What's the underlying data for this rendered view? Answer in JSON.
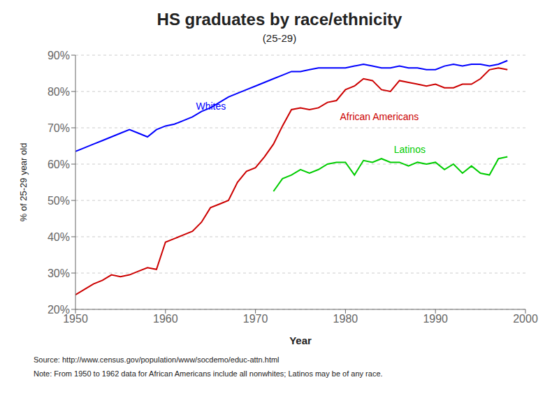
{
  "chart_data": {
    "type": "line",
    "title": "HS graduates by race/ethnicity",
    "subtitle": "(25-29)",
    "x_label": "Year",
    "y_label": "% of 25-29 year old",
    "source": "Source:  http://www.census.gov/population/www/socdemo/educ-attn.html",
    "note": "Note:  From 1950 to 1962 data for African Americans include all nonwhites;  Latinos may be of any race.",
    "xlim": [
      1950,
      2000
    ],
    "xticks": [
      1950,
      1960,
      1970,
      1980,
      1990,
      2000
    ],
    "ylim": [
      20,
      90
    ],
    "yticks": [
      {
        "value": 20,
        "label": "20%"
      },
      {
        "value": 30,
        "label": "30%"
      },
      {
        "value": 40,
        "label": "40%"
      },
      {
        "value": 50,
        "label": "50%"
      },
      {
        "value": 60,
        "label": "60%"
      },
      {
        "value": 70,
        "label": "70%"
      },
      {
        "value": 80,
        "label": "80%"
      },
      {
        "value": 90,
        "label": "90%"
      }
    ],
    "grid": true,
    "series": [
      {
        "name": "Whites",
        "color": "#0000ff",
        "x": [
          1950,
          1951,
          1952,
          1953,
          1954,
          1955,
          1956,
          1957,
          1958,
          1959,
          1960,
          1961,
          1962,
          1963,
          1964,
          1965,
          1966,
          1967,
          1968,
          1969,
          1970,
          1971,
          1972,
          1973,
          1974,
          1975,
          1976,
          1977,
          1978,
          1979,
          1980,
          1981,
          1982,
          1983,
          1984,
          1985,
          1986,
          1987,
          1988,
          1989,
          1990,
          1991,
          1992,
          1993,
          1994,
          1995,
          1996,
          1997,
          1998
        ],
        "values": [
          63.5,
          64.5,
          65.5,
          66.5,
          67.5,
          68.5,
          69.5,
          68.5,
          67.5,
          69.5,
          70.5,
          71.0,
          72.0,
          73.0,
          74.5,
          75.5,
          77.0,
          78.5,
          79.5,
          80.5,
          81.5,
          82.5,
          83.5,
          84.5,
          85.5,
          85.5,
          86.0,
          86.5,
          86.5,
          86.5,
          86.5,
          87.0,
          87.5,
          87.0,
          86.5,
          86.5,
          87.0,
          86.5,
          86.5,
          86.0,
          86.0,
          87.0,
          87.5,
          87.0,
          87.5,
          87.5,
          87.0,
          87.5,
          88.5
        ]
      },
      {
        "name": "African Americans",
        "color": "#cc0000",
        "x": [
          1950,
          1951,
          1952,
          1953,
          1954,
          1955,
          1956,
          1957,
          1958,
          1959,
          1960,
          1961,
          1962,
          1963,
          1964,
          1965,
          1966,
          1967,
          1968,
          1969,
          1970,
          1971,
          1972,
          1973,
          1974,
          1975,
          1976,
          1977,
          1978,
          1979,
          1980,
          1981,
          1982,
          1983,
          1984,
          1985,
          1986,
          1987,
          1988,
          1989,
          1990,
          1991,
          1992,
          1993,
          1994,
          1995,
          1996,
          1997,
          1998
        ],
        "values": [
          24.0,
          25.5,
          27.0,
          28.0,
          29.5,
          29.0,
          29.5,
          30.5,
          31.5,
          31.0,
          38.5,
          39.5,
          40.5,
          41.5,
          44.0,
          48.0,
          49.0,
          50.0,
          55.0,
          58.0,
          59.0,
          62.0,
          65.5,
          70.5,
          75.0,
          75.5,
          75.0,
          75.5,
          77.0,
          77.5,
          80.5,
          81.5,
          83.5,
          83.0,
          80.5,
          80.0,
          83.0,
          82.5,
          82.0,
          81.5,
          82.0,
          81.0,
          81.0,
          82.0,
          82.0,
          83.5,
          86.0,
          86.5,
          86.0
        ]
      },
      {
        "name": "Latinos",
        "color": "#00cc00",
        "x": [
          1972,
          1973,
          1974,
          1975,
          1976,
          1977,
          1978,
          1979,
          1980,
          1981,
          1982,
          1983,
          1984,
          1985,
          1986,
          1987,
          1988,
          1989,
          1990,
          1991,
          1992,
          1993,
          1994,
          1995,
          1996,
          1997,
          1998
        ],
        "values": [
          52.5,
          56.0,
          57.0,
          58.5,
          57.5,
          58.5,
          60.0,
          60.5,
          60.5,
          57.0,
          61.0,
          60.5,
          61.5,
          60.5,
          60.5,
          59.5,
          60.5,
          60.0,
          60.5,
          58.5,
          60.0,
          57.5,
          59.5,
          57.5,
          57.0,
          61.5,
          62.0
        ]
      }
    ],
    "annotations": [
      {
        "text": "Whites",
        "x": 1963,
        "y": 76,
        "color": "#0000ff"
      },
      {
        "text": "African Americans",
        "x": 1979,
        "y": 73,
        "color": "#cc0000"
      },
      {
        "text": "Latinos",
        "x": 1985,
        "y": 64,
        "color": "#00cc00"
      }
    ]
  }
}
